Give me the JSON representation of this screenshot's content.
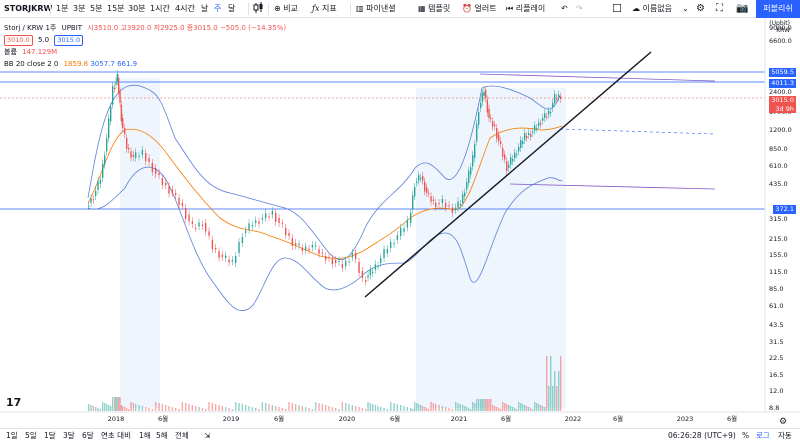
{
  "toolbar": {
    "symbol": "STORJKRW",
    "intervals": [
      "1분",
      "3분",
      "5분",
      "15분",
      "30분",
      "1시간",
      "4시간",
      "날",
      "주",
      "달"
    ],
    "active_interval": "주",
    "compare_label": "비교",
    "indicators_label": "지표",
    "financials_label": "파이낸셜",
    "templates_label": "템플릿",
    "alert_label": "얼러트",
    "replay_label": "리플레이",
    "layout_label": "이름없음",
    "publish_label": "퍼블리쉬"
  },
  "legend": {
    "pair": "Storj / KRW",
    "interval": "1주",
    "exchange": "UPBIT",
    "ohlc": "시3510.0 고3920.0 저2925.0 종3015.0 −505.0 (−14.35%)",
    "bid": "3010.0",
    "spread": "5.0",
    "ask": "3015.0",
    "volume_label": "볼륨",
    "volume_value": "147.129M",
    "bb_label": "BB 20 close 2 0",
    "bb_basis": "1859.8",
    "bb_upper": "3057.7",
    "bb_lower": "661.9"
  },
  "price_axis": {
    "ticks": [
      "9000.0",
      "6600.0",
      "5059.5",
      "4011.3",
      "3450.0",
      "3015.0",
      "2400.0",
      "1700.0",
      "1200.0",
      "850.0",
      "610.0",
      "435.0",
      "372.1",
      "315.0",
      "215.0",
      "155.0",
      "115.0",
      "85.0",
      "61.0",
      "43.5",
      "31.5",
      "22.5",
      "16.5",
      "12.0",
      "8.8"
    ],
    "currency": "(Upbit) KRW",
    "last_price": "3015.0",
    "countdown": "3d 9h",
    "hline_labels": [
      "5059.5",
      "4011.3",
      "372.1"
    ]
  },
  "time_axis": {
    "ticks": [
      "2018",
      "6월",
      "2019",
      "6월",
      "2020",
      "6월",
      "2021",
      "6월",
      "2022",
      "6월",
      "2023",
      "6월"
    ]
  },
  "bottombar": {
    "ranges": [
      "1일",
      "5일",
      "1달",
      "3달",
      "6달",
      "연초 대비",
      "1해",
      "5해",
      "전체"
    ],
    "clock": "06:26:28 (UTC+9)",
    "percent_label": "%",
    "log_label": "로그",
    "auto_label": "자동"
  },
  "colors": {
    "up": "#26a69a",
    "down": "#ef5350",
    "bb_band": "#2962ff",
    "bb_basis": "#f57c00",
    "accent": "#2962ff"
  },
  "chart_data": {
    "type": "candlestick",
    "interval": "1주",
    "scale": "log",
    "series": [
      {
        "name": "BB 20 close 2 0",
        "type": "bollinger"
      },
      {
        "name": "볼륨",
        "type": "volume"
      }
    ],
    "drawings": {
      "horizontal_lines": [
        5059.5,
        4011.3,
        372.1
      ],
      "trendline": "ascending support from 2020 low",
      "channel": "descending lines from 2021 high"
    }
  }
}
